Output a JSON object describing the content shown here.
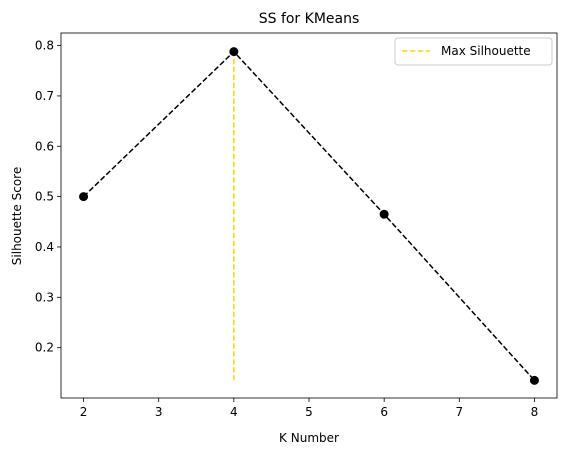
{
  "chart_data": {
    "type": "line",
    "title": "SS for KMeans",
    "xlabel": "K Number",
    "ylabel": "Silhouette Score",
    "xlim": [
      1.7,
      8.3
    ],
    "ylim": [
      0.1,
      0.825
    ],
    "xticks": [
      2,
      3,
      4,
      5,
      6,
      7,
      8
    ],
    "yticks": [
      0.2,
      0.3,
      0.4,
      0.5,
      0.6,
      0.7,
      0.8
    ],
    "ytick_labels": [
      "0.2",
      "0.3",
      "0.4",
      "0.5",
      "0.6",
      "0.7",
      "0.8"
    ],
    "grid": false,
    "legend_position": "top-right",
    "series": [
      {
        "style": "dashed line with circle markers",
        "color": "#000000",
        "x": [
          2,
          4,
          6,
          8
        ],
        "y": [
          0.5,
          0.788,
          0.465,
          0.135
        ]
      },
      {
        "name": "Max Silhouette",
        "style": "vertical dashed line",
        "color": "#FFD700",
        "x": [
          4,
          4
        ],
        "y": [
          0.135,
          0.788
        ]
      }
    ]
  }
}
